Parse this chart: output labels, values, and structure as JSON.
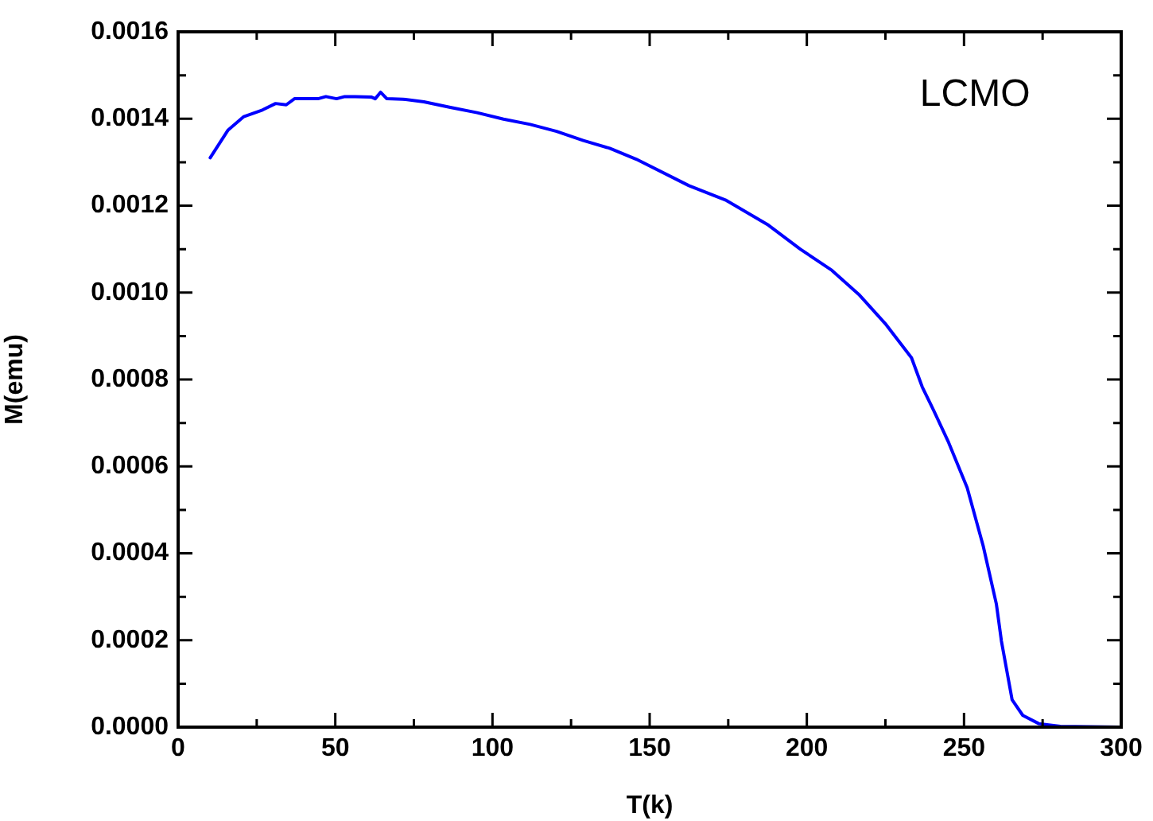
{
  "chart_data": {
    "type": "line",
    "xlabel": "T(k)",
    "ylabel": "M(emu)",
    "annotations": [
      "LCMO"
    ],
    "xlim": [
      0,
      300
    ],
    "xticks": [
      0,
      {
        "value": 25,
        "label": null
      },
      50,
      {
        "value": 75,
        "label": null
      },
      100,
      {
        "value": 125,
        "label": null
      },
      150,
      {
        "value": 175,
        "label": null
      },
      200,
      {
        "value": 225,
        "label": null
      },
      250,
      {
        "value": 275,
        "label": null
      },
      300
    ],
    "ylim": [
      0,
      0.0016
    ],
    "yticks": [
      {
        "value": 0,
        "label": "0.0000"
      },
      {
        "value": 0.0001,
        "label": null
      },
      {
        "value": 0.0002,
        "label": "0.0002"
      },
      {
        "value": 0.0003,
        "label": null
      },
      {
        "value": 0.0004,
        "label": "0.0004"
      },
      {
        "value": 0.0005,
        "label": null
      },
      {
        "value": 0.0006,
        "label": "0.0006"
      },
      {
        "value": 0.0007,
        "label": null
      },
      {
        "value": 0.0008,
        "label": "0.0008"
      },
      {
        "value": 0.0009,
        "label": null
      },
      {
        "value": 0.001,
        "label": "0.0010"
      },
      {
        "value": 0.0011,
        "label": null
      },
      {
        "value": 0.0012,
        "label": "0.0012"
      },
      {
        "value": 0.0013,
        "label": null
      },
      {
        "value": 0.0014,
        "label": "0.0014"
      },
      {
        "value": 0.0015,
        "label": null
      },
      {
        "value": 0.0016,
        "label": "0.0016"
      }
    ],
    "grid": false,
    "legend": false,
    "marker": "none",
    "line_style": "solid",
    "series": [
      {
        "color": "#0000ff",
        "x": [
          10.2,
          15.9,
          20.9,
          26.8,
          31,
          34.4,
          37,
          44.5,
          47,
          50.4,
          53,
          56.3,
          61.4,
          62.7,
          64.4,
          66.4,
          71.5,
          78.2,
          86.6,
          95.1,
          103.5,
          112,
          120.4,
          128.9,
          137.3,
          145.7,
          162.5,
          174.4,
          187.8,
          197.9,
          208,
          216.5,
          224.9,
          233.3,
          236.7,
          240.4,
          245.1,
          251,
          256.1,
          260.3,
          261.9,
          265.3,
          268.7,
          273.8,
          280.6,
          300
        ],
        "values": [
          0.00131,
          0.001374,
          0.001405,
          0.00142,
          0.001435,
          0.001432,
          0.001446,
          0.001446,
          0.001451,
          0.001446,
          0.001451,
          0.001451,
          0.00145,
          0.001446,
          0.001461,
          0.001446,
          0.001445,
          0.001439,
          0.001426,
          0.001414,
          0.001399,
          0.001387,
          0.001371,
          0.00135,
          0.001332,
          0.001307,
          0.001246,
          0.001212,
          0.001155,
          0.0011,
          0.001051,
          0.000996,
          0.000929,
          0.00085,
          0.000783,
          0.000728,
          0.000655,
          0.000551,
          0.000417,
          0.000283,
          0.000198,
          6.3e-05,
          2.7e-05,
          8e-06,
          2e-06,
          0
        ]
      }
    ]
  }
}
